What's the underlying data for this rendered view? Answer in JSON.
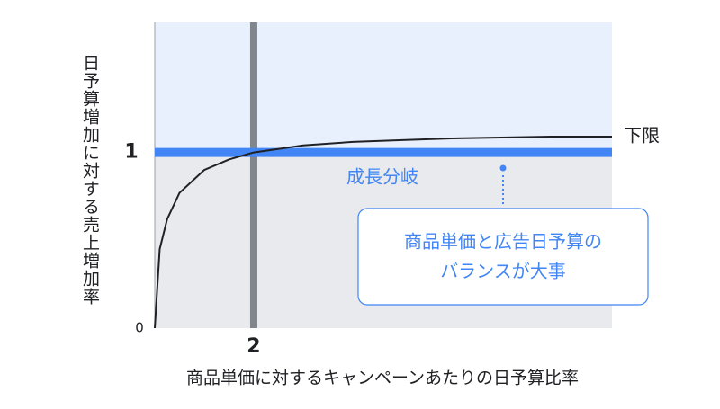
{
  "chart_data": {
    "type": "line",
    "x_label": "商品単価に対するキャンペーンあたりの日予算比率",
    "y_label": "日予算増加に対する売上増加率",
    "x": [
      0,
      0.1,
      0.25,
      0.5,
      1,
      1.5,
      2,
      3,
      4,
      5,
      6,
      7,
      8,
      9.24
    ],
    "series": [
      {
        "name": "下限",
        "color": "#202124",
        "values": [
          0,
          0.45,
          0.62,
          0.77,
          0.9,
          0.96,
          1.0,
          1.04,
          1.06,
          1.07,
          1.08,
          1.085,
          1.09,
          1.09
        ]
      }
    ],
    "xlim": [
      0,
      9.24
    ],
    "ylim": [
      0,
      1.74
    ],
    "xticks": [
      2
    ],
    "yticks": [
      0,
      1
    ],
    "threshold_label": "成長分岐",
    "threshold_color": "#4285f4",
    "marker_color": "#80868b",
    "region_colors": {
      "below": "#e8eaed",
      "above": "#e8f0fe"
    },
    "callout": [
      "商品単価と広告日予算の",
      "バランスが大事"
    ]
  }
}
